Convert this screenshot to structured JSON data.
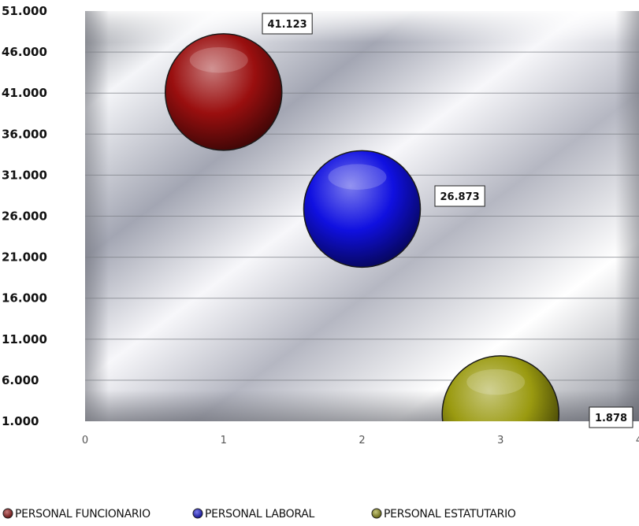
{
  "chart_data": {
    "type": "bubble",
    "title": "",
    "xlabel": "",
    "ylabel": "",
    "xlim": [
      0,
      4
    ],
    "ylim": [
      1000,
      51000
    ],
    "x_ticks": [
      "0",
      "1",
      "2",
      "3",
      "4"
    ],
    "y_ticks": [
      "1.000",
      "6.000",
      "11.000",
      "16.000",
      "21.000",
      "26.000",
      "31.000",
      "36.000",
      "41.000",
      "46.000",
      "51.000"
    ],
    "grid": true,
    "legend_position": "bottom",
    "series": [
      {
        "name": "PERSONAL FUNCIONARIO",
        "x": 1,
        "y": 41123,
        "label": "41.123",
        "color": "#9a0f0f"
      },
      {
        "name": "PERSONAL LABORAL",
        "x": 2,
        "y": 26873,
        "label": "26.873",
        "color": "#1010e0"
      },
      {
        "name": "PERSONAL ESTATUTARIO",
        "x": 3,
        "y": 1878,
        "label": "1.878",
        "color": "#9a9a10"
      }
    ]
  }
}
